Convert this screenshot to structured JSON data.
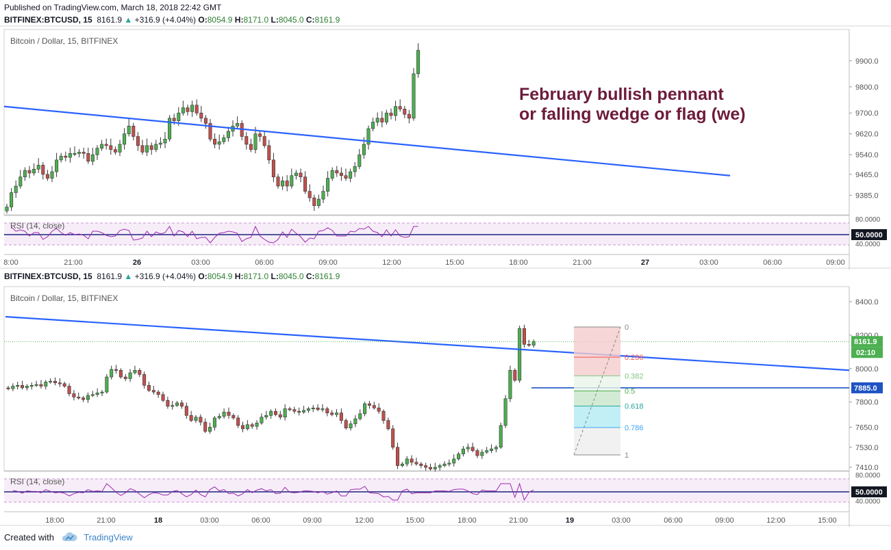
{
  "header": {
    "published": "Published on TradingView.com, March 18, 2018 22:42 GMT",
    "top_symbol": "BITFINEX:BTCUSD, 15",
    "top_price": "8161.9",
    "top_change": "+316.9 (+4.04%)",
    "top_ohlc": {
      "O": "8054.9",
      "H": "8171.0",
      "L": "8045.0",
      "C": "8161.9"
    },
    "bottom_symbol": "BITFINEX:BTCUSD, 15",
    "bottom_price": "8161.9",
    "bottom_change": "+316.9 (+4.04%)",
    "bottom_ohlc": {
      "O": "8054.9",
      "H": "8171.0",
      "L": "8045.0",
      "C": "8161.9"
    }
  },
  "footer": {
    "created_with": "Created with",
    "brand": "TradingView"
  },
  "colors": {
    "up": "#26a69a",
    "down": "#ef5350",
    "candle_up": "#4caf50",
    "candle_down": "#c0504d",
    "trend": "#2962ff",
    "rsi": "#9c27b0",
    "annotation": "#6d1b3b"
  },
  "chart_data": [
    {
      "type": "candlestick",
      "title": "Bitcoin / Dollar, 15, BITFINEX",
      "ylim": [
        9310,
        10020
      ],
      "y_ticks": [
        "9900.0",
        "9800.0",
        "9700.0",
        "9620.0",
        "9540.0",
        "9465.0",
        "9385.0"
      ],
      "y_tick_values": [
        9900,
        9800,
        9700,
        9620,
        9540,
        9465,
        9385
      ],
      "x_ticks": [
        "8:00",
        "21:00",
        "26",
        "03:00",
        "06:00",
        "09:00",
        "12:00",
        "15:00",
        "18:00",
        "21:00",
        "27",
        "03:00",
        "06:00",
        "09:00"
      ],
      "annotation": [
        "February bullish pennant",
        "or falling wedge or flag (we)"
      ],
      "trendline": {
        "from": [
          0,
          9725
        ],
        "to": [
          160,
          9460
        ]
      },
      "close": [
        9340,
        9395,
        9420,
        9455,
        9480,
        9470,
        9485,
        9500,
        9465,
        9450,
        9475,
        9520,
        9535,
        9530,
        9545,
        9545,
        9550,
        9545,
        9515,
        9540,
        9565,
        9580,
        9575,
        9560,
        9550,
        9580,
        9620,
        9650,
        9610,
        9575,
        9550,
        9575,
        9560,
        9580,
        9585,
        9600,
        9680,
        9670,
        9700,
        9720,
        9705,
        9730,
        9700,
        9680,
        9660,
        9600,
        9580,
        9590,
        9605,
        9630,
        9650,
        9660,
        9610,
        9580,
        9560,
        9620,
        9610,
        9575,
        9520,
        9455,
        9420,
        9440,
        9420,
        9460,
        9470,
        9455,
        9400,
        9375,
        9345,
        9370,
        9400,
        9450,
        9480,
        9470,
        9460,
        9450,
        9475,
        9495,
        9540,
        9580,
        9640,
        9665,
        9680,
        9665,
        9700,
        9690,
        9725,
        9715,
        9695,
        9680,
        9850,
        9940
      ],
      "rsi": {
        "label": "RSI (14, close)",
        "level": "50.0000",
        "ticks": [
          "80.0000",
          "40.0000"
        ]
      }
    },
    {
      "type": "candlestick",
      "title": "Bitcoin / Dollar, 15, BITFINEX",
      "ylim": [
        7390,
        8490
      ],
      "y_ticks": [
        "8400.0",
        "8200.0",
        "8000.0",
        "7800.0",
        "7650.0",
        "7530.0",
        "7410.0"
      ],
      "y_tick_values": [
        8400,
        8200,
        8000,
        7800,
        7650,
        7530,
        7410
      ],
      "x_ticks": [
        "18:00",
        "21:00",
        "18",
        "03:00",
        "06:00",
        "09:00",
        "12:00",
        "15:00",
        "18:00",
        "21:00",
        "19",
        "03:00",
        "06:00",
        "09:00",
        "12:00",
        "15:00"
      ],
      "last_price": "8161.9",
      "countdown": "02:10",
      "hline_price": "7885.0",
      "trendline": {
        "from": [
          0,
          8310
        ],
        "to": [
          198,
          7990
        ]
      },
      "fib": {
        "levels": [
          "0",
          "0.236",
          "0.382",
          "0.5",
          "0.618",
          "0.786",
          "1"
        ],
        "colors": [
          "#888888",
          "#ef5350",
          "#81c784",
          "#4caf50",
          "#26a69a",
          "#42a5f5",
          "#888888"
        ]
      },
      "close": [
        7880,
        7895,
        7900,
        7885,
        7895,
        7900,
        7905,
        7895,
        7920,
        7925,
        7915,
        7910,
        7895,
        7850,
        7830,
        7825,
        7815,
        7840,
        7845,
        7855,
        7860,
        7950,
        7995,
        7990,
        7950,
        7940,
        7975,
        7990,
        7965,
        7900,
        7870,
        7860,
        7845,
        7810,
        7775,
        7780,
        7795,
        7775,
        7720,
        7690,
        7710,
        7680,
        7625,
        7650,
        7705,
        7715,
        7740,
        7720,
        7705,
        7660,
        7640,
        7665,
        7655,
        7675,
        7710,
        7720,
        7745,
        7725,
        7710,
        7760,
        7755,
        7745,
        7740,
        7750,
        7760,
        7765,
        7755,
        7760,
        7735,
        7725,
        7735,
        7690,
        7645,
        7670,
        7700,
        7730,
        7790,
        7780,
        7765,
        7745,
        7690,
        7640,
        7530,
        7420,
        7430,
        7460,
        7440,
        7430,
        7420,
        7410,
        7400,
        7410,
        7420,
        7430,
        7435,
        7460,
        7490,
        7520,
        7530,
        7510,
        7480,
        7500,
        7510,
        7520,
        7530,
        7660,
        7820,
        7990,
        7930,
        8240,
        8145,
        8140,
        8162
      ],
      "rsi": {
        "label": "RSI (14, close)",
        "level": "50.0000",
        "ticks": [
          "80.0000",
          "40.0000"
        ]
      }
    }
  ]
}
